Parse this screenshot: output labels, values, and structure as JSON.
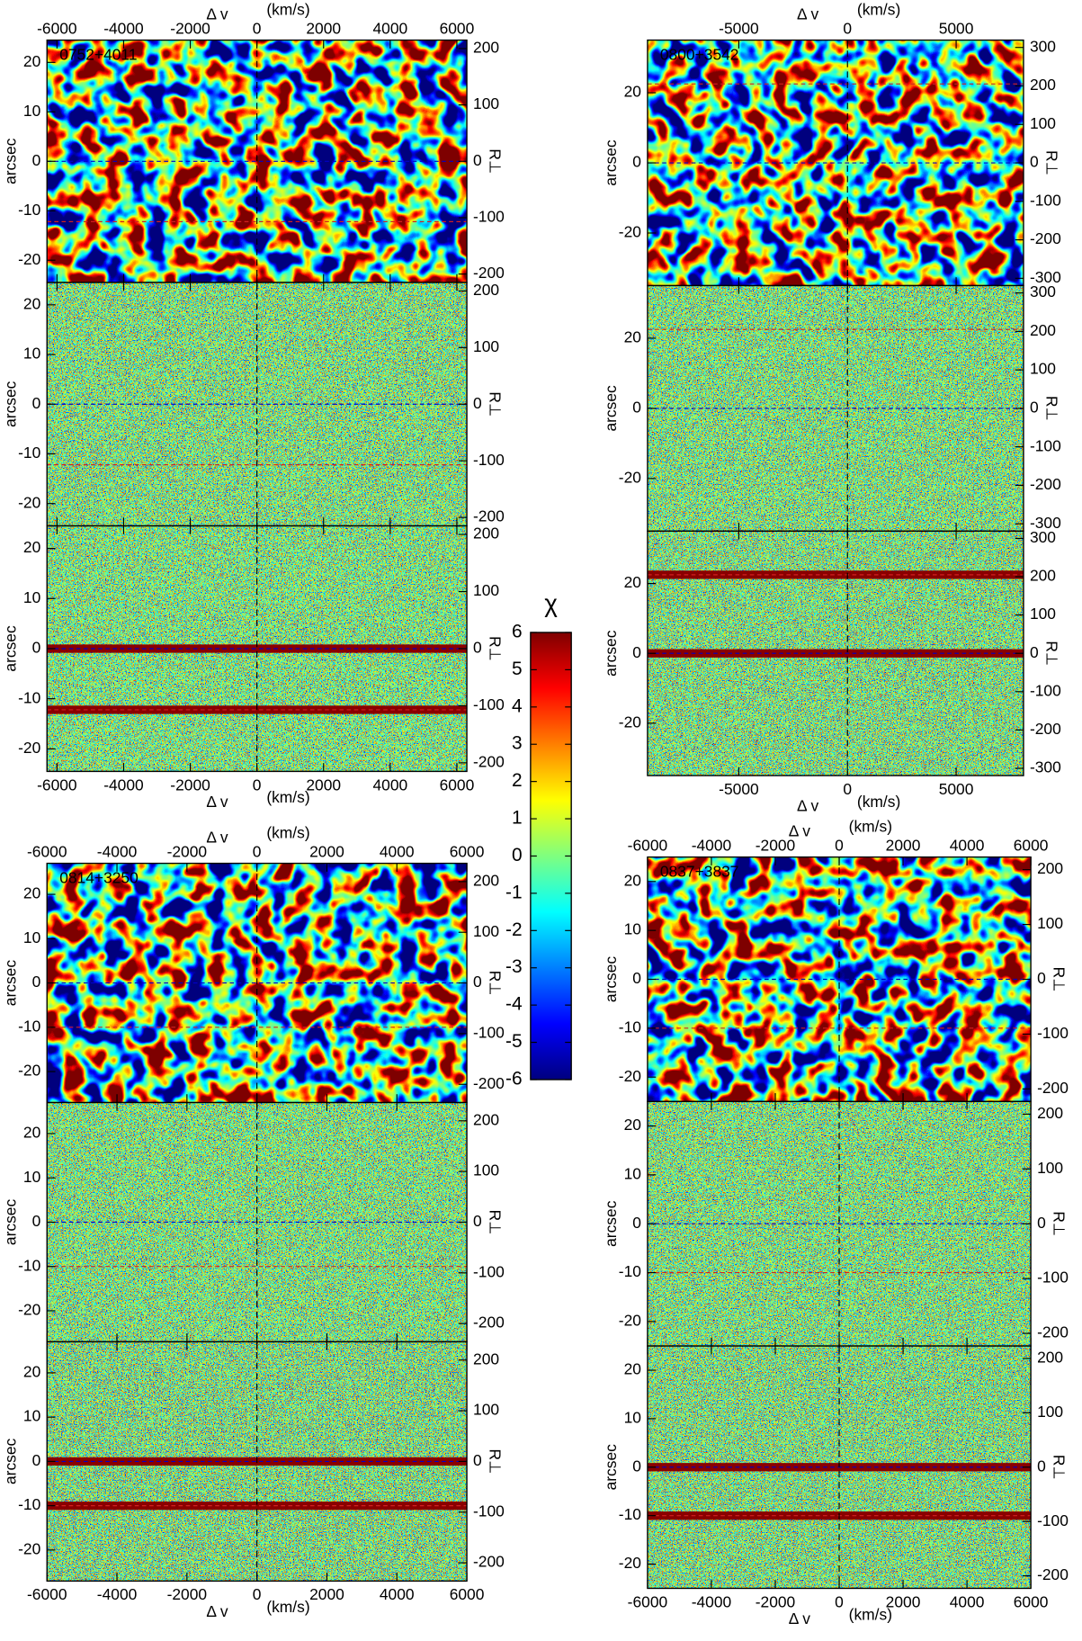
{
  "chart_data": [
    {
      "type": "heatmap",
      "title": "0752+4011",
      "xlabel": "Δ v",
      "xunit": "(km/s)",
      "ylabel": "arcsec",
      "y2label": "R⊥",
      "xlim": [
        -6300,
        6300
      ],
      "xticks": [
        -6000,
        -4000,
        -2000,
        0,
        2000,
        4000,
        6000
      ],
      "ylim": [
        -24.5,
        24.5
      ],
      "yticks": [
        -20,
        -10,
        0,
        10,
        20
      ],
      "y2lim": [
        -215,
        215
      ],
      "y2ticks": [
        -200,
        -100,
        0,
        100,
        200
      ],
      "vline": 0,
      "hlines": [
        {
          "value": 0,
          "color": "#0000c8"
        },
        {
          "value": -12.2,
          "color": "#d02020"
        }
      ]
    },
    {
      "type": "heatmap",
      "title": "0800+3542",
      "xlabel": "Δ v",
      "xunit": "(km/s)",
      "ylabel": "arcsec",
      "y2label": "R⊥",
      "xlim": [
        -9200,
        8100
      ],
      "xticks": [
        -5000,
        0,
        5000
      ],
      "ylim": [
        -35,
        35
      ],
      "yticks": [
        -20,
        0,
        20
      ],
      "y2lim": [
        -319,
        319
      ],
      "y2ticks": [
        -300,
        -200,
        -100,
        0,
        100,
        200,
        300
      ],
      "vline": 0,
      "hlines": [
        {
          "value": 0,
          "color": "#0000c8"
        },
        {
          "value": 22.5,
          "color": "#d02020"
        }
      ]
    },
    {
      "type": "heatmap",
      "title": "0814+3250",
      "xlabel": "Δ v",
      "xunit": "(km/s)",
      "ylabel": "arcsec",
      "y2label": "R⊥",
      "xlim": [
        -6000,
        6000
      ],
      "xticks": [
        -6000,
        -4000,
        -2000,
        0,
        2000,
        4000,
        6000
      ],
      "ylim": [
        -27,
        27
      ],
      "yticks": [
        -20,
        -10,
        0,
        10,
        20
      ],
      "y2lim": [
        -236,
        236
      ],
      "y2ticks": [
        -200,
        -100,
        0,
        100,
        200
      ],
      "vline": 0,
      "hlines": [
        {
          "value": 0,
          "color": "#0000c8"
        },
        {
          "value": -10,
          "color": "#d02020"
        }
      ]
    },
    {
      "type": "heatmap",
      "title": "0837+3837",
      "xlabel": "Δ v",
      "xunit": "(km/s)",
      "ylabel": "arcsec",
      "y2label": "R⊥",
      "xlim": [
        -6000,
        6000
      ],
      "xticks": [
        -6000,
        -4000,
        -2000,
        0,
        2000,
        4000,
        6000
      ],
      "ylim": [
        -25,
        25
      ],
      "yticks": [
        -20,
        -10,
        0,
        10,
        20
      ],
      "y2lim": [
        -223,
        223
      ],
      "y2ticks": [
        -200,
        -100,
        0,
        100,
        200
      ],
      "vline": 0,
      "hlines": [
        {
          "value": 0,
          "color": "#0000c8"
        },
        {
          "value": -10,
          "color": "#d02020"
        }
      ]
    },
    {
      "type": "colorbar",
      "title": "χ",
      "ylim": [
        -6,
        6
      ],
      "yticks": [
        -6,
        -5,
        -4,
        -3,
        -2,
        -1,
        0,
        1,
        2,
        3,
        4,
        5,
        6
      ],
      "colormap": [
        "#00007f",
        "#0000ff",
        "#007fff",
        "#00ffff",
        "#7fff7f",
        "#ffff00",
        "#ff7f00",
        "#ff0000",
        "#7f0000"
      ]
    }
  ]
}
